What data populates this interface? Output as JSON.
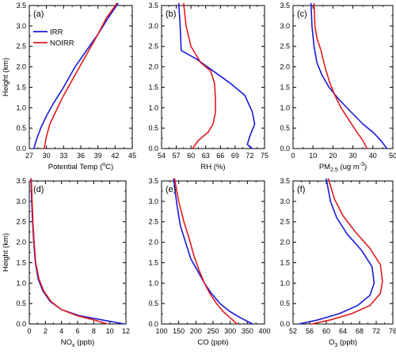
{
  "figure": {
    "legend": [
      {
        "name": "IRR",
        "color": "#1a1adb"
      },
      {
        "name": "NOIRR",
        "color": "#e31a1c"
      }
    ]
  },
  "chart_data": [
    {
      "type": "line",
      "panel_label": "(a)",
      "xlabel": "Potential Temp (",
      "xlabel_sup": "o",
      "xlabel_tail": "C)",
      "ylabel": "Height (km)",
      "xlim": [
        27,
        45
      ],
      "ylim": [
        0,
        3.5
      ],
      "xticks": [
        27,
        30,
        33,
        36,
        39,
        42,
        45
      ],
      "yticks": [
        0.0,
        0.5,
        1.0,
        1.5,
        2.0,
        2.5,
        3.0,
        3.5
      ],
      "series": [
        {
          "name": "IRR",
          "color": "#1a1adb",
          "x": [
            27.8,
            28.2,
            29.0,
            30.0,
            31.2,
            33.0,
            35.0,
            37.0,
            39.0,
            40.8,
            42.5
          ],
          "y": [
            0.0,
            0.2,
            0.5,
            0.8,
            1.1,
            1.5,
            2.0,
            2.4,
            2.8,
            3.2,
            3.55
          ]
        },
        {
          "name": "NOIRR",
          "color": "#e31a1c",
          "x": [
            29.6,
            30.0,
            30.6,
            31.6,
            33.0,
            35.0,
            37.0,
            39.0,
            40.5,
            42.3
          ],
          "y": [
            0.0,
            0.3,
            0.6,
            0.9,
            1.3,
            1.8,
            2.3,
            2.8,
            3.2,
            3.55
          ]
        }
      ]
    },
    {
      "type": "line",
      "panel_label": "(b)",
      "xlabel": "RH (%)",
      "xlabel_sup": "",
      "xlabel_tail": "",
      "ylabel": "",
      "xlim": [
        54,
        75
      ],
      "ylim": [
        0,
        3.5
      ],
      "xticks": [
        54,
        57,
        60,
        63,
        66,
        69,
        72,
        75
      ],
      "yticks": [
        0.0,
        0.5,
        1.0,
        1.5,
        2.0,
        2.5,
        3.0,
        3.5
      ],
      "series": [
        {
          "name": "IRR",
          "color": "#1a1adb",
          "x": [
            72.5,
            71.5,
            72.0,
            73.0,
            72.5,
            71.0,
            68.0,
            64.5,
            61.0,
            58.0,
            57.8,
            57.5
          ],
          "y": [
            0.0,
            0.1,
            0.3,
            0.6,
            0.9,
            1.3,
            1.6,
            1.9,
            2.2,
            2.4,
            3.0,
            3.55
          ]
        },
        {
          "name": "NOIRR",
          "color": "#e31a1c",
          "x": [
            60.3,
            61.5,
            63.5,
            64.5,
            65.0,
            65.0,
            64.8,
            64.0,
            62.0,
            60.0,
            59.0,
            58.5
          ],
          "y": [
            0.0,
            0.2,
            0.4,
            0.6,
            0.9,
            1.2,
            1.6,
            1.9,
            2.1,
            2.5,
            3.0,
            3.55
          ]
        }
      ]
    },
    {
      "type": "line",
      "panel_label": "(c)",
      "xlabel": "PM",
      "xlabel_sup": "",
      "xlabel_sub": "2.5",
      "xlabel_tail": " (ug m",
      "xlabel_sup2": "-3",
      "xlabel_end": ")",
      "ylabel": "",
      "xlim": [
        0,
        50
      ],
      "ylim": [
        0,
        3.5
      ],
      "xticks": [
        0,
        10,
        20,
        30,
        40,
        50
      ],
      "yticks": [
        0.0,
        0.5,
        1.0,
        1.5,
        2.0,
        2.5,
        3.0,
        3.5
      ],
      "series": [
        {
          "name": "IRR",
          "color": "#1a1adb",
          "x": [
            47.0,
            44.0,
            40.0,
            35.0,
            29.0,
            23.0,
            18.0,
            14.5,
            12.0,
            10.5,
            9.5,
            9.0
          ],
          "y": [
            0.0,
            0.2,
            0.4,
            0.6,
            0.9,
            1.2,
            1.5,
            1.8,
            2.1,
            2.5,
            3.0,
            3.55
          ]
        },
        {
          "name": "NOIRR",
          "color": "#e31a1c",
          "x": [
            37.0,
            35.0,
            32.0,
            28.0,
            24.0,
            21.0,
            18.5,
            16.0,
            14.0,
            12.0,
            11.0,
            10.5
          ],
          "y": [
            0.0,
            0.2,
            0.4,
            0.7,
            1.0,
            1.3,
            1.6,
            2.0,
            2.4,
            2.7,
            3.0,
            3.55
          ]
        }
      ]
    },
    {
      "type": "line",
      "panel_label": "(d)",
      "xlabel": "NO",
      "xlabel_sup": "",
      "xlabel_sub": "x",
      "xlabel_tail": " (ppb)",
      "ylabel": "Height (km)",
      "xlim": [
        0,
        12
      ],
      "ylim": [
        0,
        3.5
      ],
      "xticks": [
        0,
        2,
        4,
        6,
        8,
        10,
        12
      ],
      "yticks": [
        0.0,
        0.5,
        1.0,
        1.5,
        2.0,
        2.5,
        3.0,
        3.5
      ],
      "series": [
        {
          "name": "IRR",
          "color": "#1a1adb",
          "x": [
            11.8,
            9.0,
            6.3,
            4.0,
            2.6,
            1.7,
            1.1,
            0.75,
            0.55,
            0.4,
            0.3,
            0.2
          ],
          "y": [
            0.0,
            0.1,
            0.2,
            0.35,
            0.55,
            0.8,
            1.1,
            1.5,
            2.0,
            2.5,
            3.0,
            3.55
          ]
        },
        {
          "name": "NOIRR",
          "color": "#e31a1c",
          "x": [
            9.7,
            8.0,
            6.0,
            4.0,
            2.7,
            1.8,
            1.2,
            0.8,
            0.6,
            0.45,
            0.35,
            0.25
          ],
          "y": [
            0.0,
            0.1,
            0.2,
            0.35,
            0.55,
            0.8,
            1.1,
            1.5,
            2.0,
            2.5,
            3.0,
            3.55
          ]
        }
      ]
    },
    {
      "type": "line",
      "panel_label": "(e)",
      "xlabel": "CO (ppb)",
      "xlabel_sup": "",
      "xlabel_tail": "",
      "ylabel": "",
      "xlim": [
        100,
        400
      ],
      "ylim": [
        0,
        3.5
      ],
      "xticks": [
        100,
        150,
        200,
        250,
        300,
        350,
        400
      ],
      "yticks": [
        0.0,
        0.5,
        1.0,
        1.5,
        2.0,
        2.5,
        3.0,
        3.5
      ],
      "series": [
        {
          "name": "IRR",
          "color": "#1a1adb",
          "x": [
            365,
            330,
            300,
            270,
            245,
            225,
            205,
            185,
            170,
            155,
            145,
            135
          ],
          "y": [
            0.0,
            0.15,
            0.3,
            0.5,
            0.75,
            1.0,
            1.3,
            1.6,
            2.0,
            2.4,
            2.9,
            3.55
          ]
        },
        {
          "name": "NOIRR",
          "color": "#e31a1c",
          "x": [
            320,
            300,
            280,
            260,
            240,
            225,
            210,
            195,
            180,
            165,
            150,
            138
          ],
          "y": [
            0.0,
            0.15,
            0.3,
            0.5,
            0.75,
            1.0,
            1.3,
            1.65,
            2.1,
            2.5,
            3.0,
            3.55
          ]
        }
      ]
    },
    {
      "type": "line",
      "panel_label": "(f)",
      "xlabel": "O",
      "xlabel_sup": "",
      "xlabel_sub": "3",
      "xlabel_tail": " (ppb)",
      "ylabel": "",
      "xlim": [
        52,
        76
      ],
      "ylim": [
        0,
        3.5
      ],
      "xticks": [
        52,
        56,
        60,
        64,
        68,
        72,
        76
      ],
      "yticks": [
        0.0,
        0.5,
        1.0,
        1.5,
        2.0,
        2.5,
        3.0,
        3.5
      ],
      "series": [
        {
          "name": "IRR",
          "color": "#1a1adb",
          "x": [
            53.5,
            58.0,
            63.0,
            67.5,
            70.5,
            71.5,
            71.0,
            68.5,
            65.0,
            62.5,
            61.0,
            60.0
          ],
          "y": [
            0.0,
            0.1,
            0.25,
            0.45,
            0.7,
            1.0,
            1.4,
            1.8,
            2.2,
            2.6,
            3.0,
            3.55
          ]
        },
        {
          "name": "NOIRR",
          "color": "#e31a1c",
          "x": [
            56.5,
            61.0,
            66.0,
            70.5,
            73.0,
            73.5,
            73.0,
            70.5,
            67.0,
            64.0,
            62.0,
            60.5
          ],
          "y": [
            0.0,
            0.1,
            0.25,
            0.45,
            0.75,
            1.05,
            1.45,
            1.85,
            2.25,
            2.65,
            3.05,
            3.55
          ]
        }
      ]
    }
  ]
}
